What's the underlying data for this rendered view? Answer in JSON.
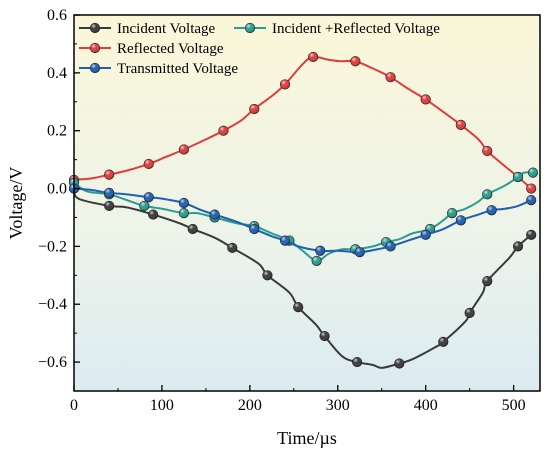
{
  "chart_data": {
    "type": "line",
    "xlabel": "Time/µs",
    "ylabel": "Voltage/V",
    "xlim": [
      0,
      530
    ],
    "ylim": [
      -0.7,
      0.6
    ],
    "x_ticks": [
      0,
      100,
      200,
      300,
      400,
      500
    ],
    "x_tick_labels": [
      "0",
      "100",
      "200",
      "300",
      "400",
      "500"
    ],
    "y_ticks": [
      -0.6,
      -0.4,
      -0.2,
      0.0,
      0.2,
      0.4,
      0.6
    ],
    "y_tick_labels": [
      "−0.6",
      "−0.4",
      "−0.2",
      "0.0",
      "0.2",
      "0.4",
      "0.6"
    ],
    "grid": false,
    "legend_position": "top-left",
    "background": "vertical gradient, pale yellow at top to pale blue at bottom",
    "series": [
      {
        "name": "Incident Voltage",
        "color": "#3a3a3a",
        "points": [
          [
            0,
            0.0
          ],
          [
            5,
            -0.035
          ],
          [
            40,
            -0.06
          ],
          [
            60,
            -0.065
          ],
          [
            90,
            -0.09
          ],
          [
            120,
            -0.12
          ],
          [
            135,
            -0.14
          ],
          [
            160,
            -0.17
          ],
          [
            180,
            -0.205
          ],
          [
            210,
            -0.26
          ],
          [
            220,
            -0.3
          ],
          [
            245,
            -0.36
          ],
          [
            255,
            -0.41
          ],
          [
            275,
            -0.47
          ],
          [
            285,
            -0.51
          ],
          [
            305,
            -0.58
          ],
          [
            322,
            -0.6
          ],
          [
            340,
            -0.61
          ],
          [
            350,
            -0.62
          ],
          [
            370,
            -0.605
          ],
          [
            385,
            -0.59
          ],
          [
            410,
            -0.55
          ],
          [
            420,
            -0.53
          ],
          [
            445,
            -0.46
          ],
          [
            450,
            -0.43
          ],
          [
            465,
            -0.36
          ],
          [
            470,
            -0.32
          ],
          [
            495,
            -0.24
          ],
          [
            505,
            -0.2
          ],
          [
            520,
            -0.16
          ]
        ],
        "markers": [
          [
            0,
            0.0
          ],
          [
            40,
            -0.06
          ],
          [
            90,
            -0.09
          ],
          [
            135,
            -0.14
          ],
          [
            180,
            -0.205
          ],
          [
            220,
            -0.3
          ],
          [
            255,
            -0.41
          ],
          [
            285,
            -0.51
          ],
          [
            322,
            -0.6
          ],
          [
            370,
            -0.605
          ],
          [
            420,
            -0.53
          ],
          [
            450,
            -0.43
          ],
          [
            470,
            -0.32
          ],
          [
            505,
            -0.2
          ],
          [
            520,
            -0.16
          ]
        ]
      },
      {
        "name": "Reflected Voltage",
        "color": "#e03c3c",
        "points": [
          [
            0,
            0.03
          ],
          [
            20,
            0.035
          ],
          [
            40,
            0.048
          ],
          [
            60,
            0.062
          ],
          [
            85,
            0.085
          ],
          [
            105,
            0.11
          ],
          [
            125,
            0.135
          ],
          [
            150,
            0.17
          ],
          [
            170,
            0.2
          ],
          [
            190,
            0.235
          ],
          [
            205,
            0.275
          ],
          [
            225,
            0.32
          ],
          [
            240,
            0.36
          ],
          [
            260,
            0.43
          ],
          [
            272,
            0.455
          ],
          [
            290,
            0.445
          ],
          [
            305,
            0.44
          ],
          [
            320,
            0.44
          ],
          [
            340,
            0.415
          ],
          [
            360,
            0.385
          ],
          [
            380,
            0.345
          ],
          [
            400,
            0.308
          ],
          [
            420,
            0.265
          ],
          [
            440,
            0.22
          ],
          [
            460,
            0.17
          ],
          [
            470,
            0.13
          ],
          [
            485,
            0.09
          ],
          [
            505,
            0.04
          ],
          [
            520,
            0.0
          ]
        ],
        "markers": [
          [
            0,
            0.03
          ],
          [
            40,
            0.048
          ],
          [
            85,
            0.085
          ],
          [
            125,
            0.135
          ],
          [
            170,
            0.2
          ],
          [
            205,
            0.275
          ],
          [
            240,
            0.36
          ],
          [
            272,
            0.455
          ],
          [
            320,
            0.44
          ],
          [
            360,
            0.385
          ],
          [
            400,
            0.308
          ],
          [
            440,
            0.22
          ],
          [
            470,
            0.13
          ],
          [
            505,
            0.04
          ],
          [
            520,
            0.0
          ]
        ]
      },
      {
        "name": "Incident +Reflected Voltage",
        "color": "#2a9d8f",
        "points": [
          [
            0,
            0.02
          ],
          [
            15,
            -0.01
          ],
          [
            40,
            -0.02
          ],
          [
            60,
            -0.04
          ],
          [
            80,
            -0.06
          ],
          [
            100,
            -0.07
          ],
          [
            125,
            -0.085
          ],
          [
            140,
            -0.085
          ],
          [
            160,
            -0.1
          ],
          [
            185,
            -0.12
          ],
          [
            205,
            -0.13
          ],
          [
            225,
            -0.155
          ],
          [
            245,
            -0.18
          ],
          [
            260,
            -0.215
          ],
          [
            276,
            -0.25
          ],
          [
            290,
            -0.225
          ],
          [
            305,
            -0.21
          ],
          [
            320,
            -0.21
          ],
          [
            340,
            -0.2
          ],
          [
            355,
            -0.185
          ],
          [
            370,
            -0.175
          ],
          [
            385,
            -0.155
          ],
          [
            405,
            -0.14
          ],
          [
            420,
            -0.11
          ],
          [
            430,
            -0.085
          ],
          [
            445,
            -0.07
          ],
          [
            460,
            -0.045
          ],
          [
            470,
            -0.02
          ],
          [
            490,
            0.01
          ],
          [
            505,
            0.04
          ],
          [
            512,
            0.055
          ],
          [
            522,
            0.055
          ]
        ],
        "markers": [
          [
            0,
            0.02
          ],
          [
            40,
            -0.02
          ],
          [
            80,
            -0.06
          ],
          [
            125,
            -0.085
          ],
          [
            160,
            -0.1
          ],
          [
            205,
            -0.13
          ],
          [
            245,
            -0.18
          ],
          [
            276,
            -0.25
          ],
          [
            320,
            -0.21
          ],
          [
            355,
            -0.185
          ],
          [
            405,
            -0.14
          ],
          [
            430,
            -0.085
          ],
          [
            470,
            -0.02
          ],
          [
            505,
            0.04
          ],
          [
            522,
            0.055
          ]
        ]
      },
      {
        "name": "Transmitted Voltage",
        "color": "#1f5fb4",
        "points": [
          [
            0,
            0.0
          ],
          [
            20,
            -0.005
          ],
          [
            40,
            -0.015
          ],
          [
            60,
            -0.02
          ],
          [
            85,
            -0.03
          ],
          [
            100,
            -0.035
          ],
          [
            125,
            -0.05
          ],
          [
            145,
            -0.075
          ],
          [
            160,
            -0.09
          ],
          [
            185,
            -0.115
          ],
          [
            205,
            -0.14
          ],
          [
            225,
            -0.165
          ],
          [
            240,
            -0.18
          ],
          [
            255,
            -0.2
          ],
          [
            280,
            -0.215
          ],
          [
            300,
            -0.215
          ],
          [
            325,
            -0.22
          ],
          [
            345,
            -0.21
          ],
          [
            360,
            -0.2
          ],
          [
            380,
            -0.18
          ],
          [
            400,
            -0.16
          ],
          [
            420,
            -0.14
          ],
          [
            440,
            -0.11
          ],
          [
            460,
            -0.09
          ],
          [
            475,
            -0.075
          ],
          [
            490,
            -0.07
          ],
          [
            505,
            -0.06
          ],
          [
            520,
            -0.04
          ]
        ],
        "markers": [
          [
            0,
            0.0
          ],
          [
            40,
            -0.015
          ],
          [
            85,
            -0.03
          ],
          [
            125,
            -0.05
          ],
          [
            160,
            -0.09
          ],
          [
            205,
            -0.14
          ],
          [
            240,
            -0.18
          ],
          [
            280,
            -0.215
          ],
          [
            325,
            -0.22
          ],
          [
            360,
            -0.2
          ],
          [
            400,
            -0.16
          ],
          [
            440,
            -0.11
          ],
          [
            475,
            -0.075
          ],
          [
            520,
            -0.04
          ]
        ]
      }
    ],
    "legend": {
      "row1": [
        {
          "label": "Incident Voltage",
          "color": "#3a3a3a"
        },
        {
          "label": "Incident +Reflected Voltage",
          "color": "#2a9d8f"
        }
      ],
      "row2": [
        {
          "label": "Reflected Voltage",
          "color": "#e03c3c"
        }
      ],
      "row3": [
        {
          "label": "Transmitted Voltage",
          "color": "#1f5fb4"
        }
      ]
    }
  }
}
